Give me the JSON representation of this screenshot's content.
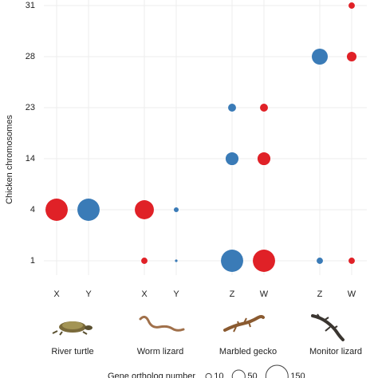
{
  "chart_data": {
    "type": "bubble",
    "y_label": "Chicken chromosomes",
    "y_categories": [
      "1",
      "4",
      "14",
      "23",
      "28",
      "31"
    ],
    "grid": true,
    "groups": [
      {
        "name": "River turtle",
        "columns": [
          {
            "label": "X",
            "color": "#e02127",
            "points": [
              {
                "y": "4",
                "size": 150
              }
            ]
          },
          {
            "label": "Y",
            "color": "#3a7bb7",
            "points": [
              {
                "y": "4",
                "size": 150
              }
            ]
          }
        ]
      },
      {
        "name": "Worm lizard",
        "columns": [
          {
            "label": "X",
            "color": "#e02127",
            "points": [
              {
                "y": "4",
                "size": 110
              },
              {
                "y": "1",
                "size": 12
              }
            ]
          },
          {
            "label": "Y",
            "color": "#3a7bb7",
            "points": [
              {
                "y": "4",
                "size": 7
              },
              {
                "y": "1",
                "size": 2
              }
            ]
          }
        ]
      },
      {
        "name": "Marbled gecko",
        "columns": [
          {
            "label": "Z",
            "color": "#3a7bb7",
            "points": [
              {
                "y": "23",
                "size": 19
              },
              {
                "y": "14",
                "size": 50
              },
              {
                "y": "1",
                "size": 150
              }
            ]
          },
          {
            "label": "W",
            "color": "#e02127",
            "points": [
              {
                "y": "23",
                "size": 19
              },
              {
                "y": "14",
                "size": 50
              },
              {
                "y": "1",
                "size": 150
              }
            ]
          }
        ]
      },
      {
        "name": "Monitor lizard",
        "columns": [
          {
            "label": "Z",
            "color": "#3a7bb7",
            "points": [
              {
                "y": "28",
                "size": 77
              },
              {
                "y": "1",
                "size": 12
              }
            ]
          },
          {
            "label": "W",
            "color": "#e02127",
            "points": [
              {
                "y": "31",
                "size": 12
              },
              {
                "y": "28",
                "size": 28
              },
              {
                "y": "1",
                "size": 12
              }
            ]
          }
        ]
      }
    ],
    "size_legend": {
      "title": "Gene ortholog number",
      "values": [
        10,
        50,
        150
      ]
    }
  }
}
